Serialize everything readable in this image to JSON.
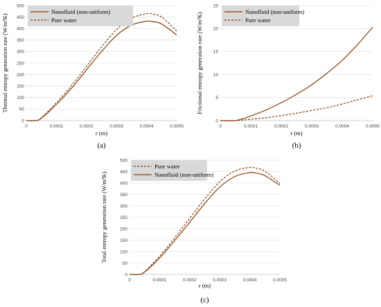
{
  "colors": {
    "series": "#843c0c",
    "legend_bg": "#d9d9d9",
    "grid": "#d9d9d9"
  },
  "chart_data": [
    {
      "type": "line",
      "panel_label": "(a)",
      "title": "",
      "xlabel": "r (m)",
      "ylabel": "Thermal entropy generation rate (W/m³K)",
      "xlim": [
        0,
        0.0005
      ],
      "ylim": [
        0,
        500
      ],
      "x_ticks": [
        0,
        0.0001,
        0.0002,
        0.0003,
        0.0004,
        0.0005
      ],
      "x_tick_labels": [
        "0",
        "0.0001",
        "0.0002",
        "0.0003",
        "0.0004",
        "0.0005"
      ],
      "y_ticks": [
        0,
        50,
        100,
        150,
        200,
        250,
        300,
        350,
        400,
        450,
        500
      ],
      "y_tick_labels": [
        "0",
        "50",
        "100",
        "150",
        "200",
        "250",
        "300",
        "350",
        "400",
        "450",
        "500"
      ],
      "grid": "horizontal",
      "legend_position": "top-left",
      "x": [
        0,
        3e-05,
        5e-05,
        0.0001,
        0.00015,
        0.0002,
        0.00025,
        0.0003,
        0.00035,
        0.0004,
        0.00042,
        0.00045,
        0.0005
      ],
      "series": [
        {
          "name": "Nanofluid (non-uniform)",
          "style": "solid",
          "values": [
            0,
            0,
            10,
            70,
            140,
            220,
            300,
            370,
            415,
            432,
            430,
            420,
            372
          ]
        },
        {
          "name": "Pure water",
          "style": "dashed",
          "values": [
            0,
            0,
            12,
            78,
            152,
            235,
            320,
            395,
            445,
            465,
            463,
            450,
            390
          ]
        }
      ]
    },
    {
      "type": "line",
      "panel_label": "(b)",
      "title": "",
      "xlabel": "r (m)",
      "ylabel": "Frictional entropy generation rate (W/m³K)",
      "xlim": [
        0,
        0.0005
      ],
      "ylim": [
        0,
        25
      ],
      "x_ticks": [
        0,
        0.0001,
        0.0002,
        0.0003,
        0.0004,
        0.0005
      ],
      "x_tick_labels": [
        "0",
        "0.0001",
        "0.0002",
        "0.0003",
        "0.0004",
        "0.0005"
      ],
      "y_ticks": [
        0,
        5,
        10,
        15,
        20,
        25
      ],
      "y_tick_labels": [
        "0",
        "5",
        "10",
        "15",
        "20",
        "25"
      ],
      "grid": "horizontal",
      "legend_position": "top-left",
      "x": [
        0,
        5e-05,
        0.0001,
        0.00015,
        0.0002,
        0.00025,
        0.0003,
        0.00035,
        0.0004,
        0.00045,
        0.0005
      ],
      "series": [
        {
          "name": "Nanofluid (non-uniform)",
          "style": "solid",
          "values": [
            0,
            0,
            1.0,
            2.3,
            3.9,
            5.7,
            7.8,
            10.3,
            13.1,
            16.5,
            20.3
          ]
        },
        {
          "name": "Pure water",
          "style": "dashed",
          "values": [
            0,
            0,
            0.3,
            0.6,
            1.1,
            1.6,
            2.2,
            2.8,
            3.6,
            4.5,
            5.4
          ]
        }
      ]
    },
    {
      "type": "line",
      "panel_label": "(c)",
      "title": "",
      "xlabel": "r (m)",
      "ylabel": "Total entropy generation rate (W/m³K)",
      "xlim": [
        0,
        0.0005
      ],
      "ylim": [
        0,
        500
      ],
      "x_ticks": [
        0,
        0.0001,
        0.0002,
        0.0003,
        0.0004,
        0.0005
      ],
      "x_tick_labels": [
        "0",
        "0.0001",
        "0.0002",
        "0.0003",
        "0.0004",
        "0.0005"
      ],
      "y_ticks": [
        0,
        50,
        100,
        150,
        200,
        250,
        300,
        350,
        400,
        450,
        500
      ],
      "y_tick_labels": [
        "0",
        "50",
        "100",
        "150",
        "200",
        "250",
        "300",
        "350",
        "400",
        "450",
        "500"
      ],
      "grid": "horizontal",
      "legend_position": "top-left",
      "x": [
        0,
        3e-05,
        5e-05,
        0.0001,
        0.00015,
        0.0002,
        0.00025,
        0.0003,
        0.00035,
        0.0004,
        0.00042,
        0.00045,
        0.0005
      ],
      "series": [
        {
          "name": "Pure water",
          "style": "dashed",
          "values": [
            0,
            0,
            12,
            80,
            160,
            245,
            330,
            405,
            452,
            468,
            465,
            452,
            398
          ]
        },
        {
          "name": "Nanofluid (non-uniform)",
          "style": "solid",
          "values": [
            0,
            0,
            10,
            72,
            148,
            228,
            310,
            382,
            428,
            445,
            443,
            432,
            390
          ]
        }
      ]
    }
  ]
}
